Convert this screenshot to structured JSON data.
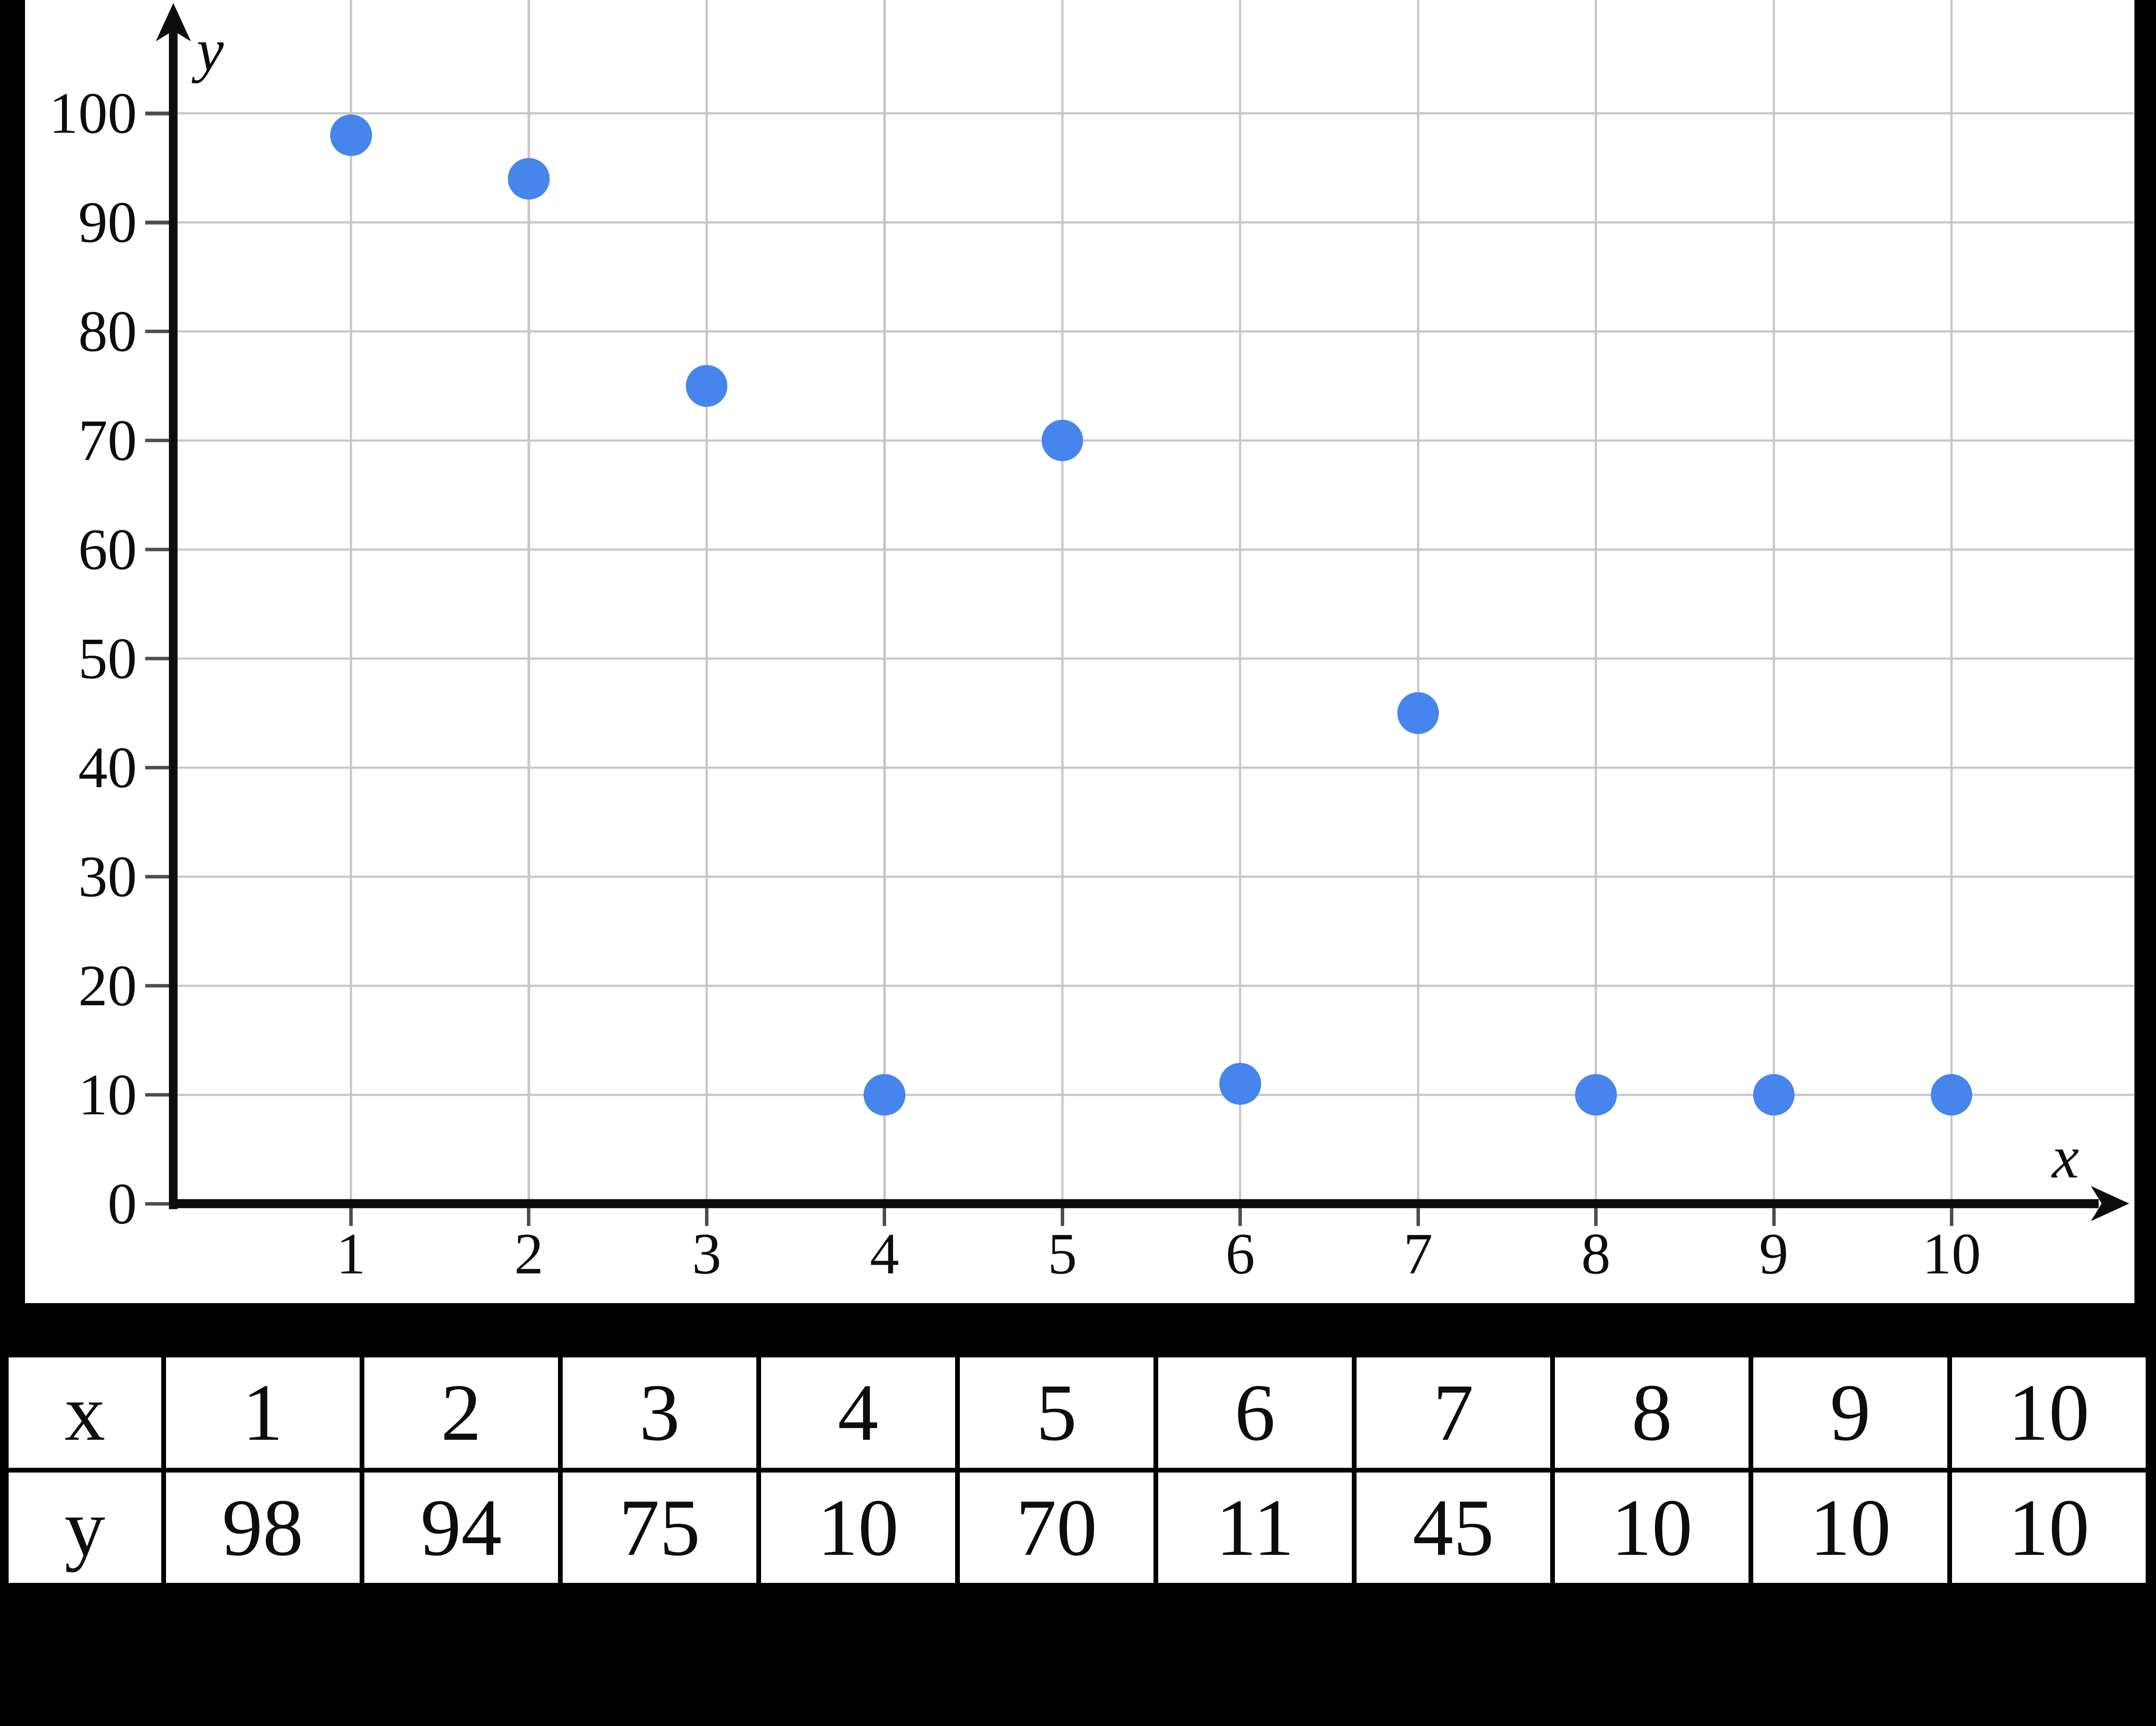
{
  "figure": {
    "description": "Scatter plot of y versus x with a values table below"
  },
  "chart_data": {
    "type": "scatter",
    "x": [
      1,
      2,
      3,
      4,
      5,
      6,
      7,
      8,
      9,
      10
    ],
    "y": [
      98,
      94,
      75,
      10,
      70,
      11,
      45,
      10,
      10,
      10
    ],
    "title": "",
    "xlabel": "x",
    "ylabel": "y",
    "xlim": [
      0,
      11.1
    ],
    "ylim": [
      0,
      110.6
    ],
    "x_ticks": [
      1,
      2,
      3,
      4,
      5,
      6,
      7,
      8,
      9,
      10
    ],
    "x_tick_labels": [
      "1",
      "2",
      "3",
      "4",
      "5",
      "6",
      "7",
      "8",
      "9",
      "10"
    ],
    "y_ticks": [
      0,
      10,
      20,
      30,
      40,
      50,
      60,
      70,
      80,
      90,
      100
    ],
    "y_tick_labels": [
      "0",
      "10",
      "20",
      "30",
      "40",
      "50",
      "60",
      "70",
      "80",
      "90",
      "100"
    ],
    "grid": true,
    "legend": false,
    "marker": "circle"
  },
  "table": {
    "row_headers": [
      "x",
      "y"
    ],
    "rows": [
      [
        "1",
        "2",
        "3",
        "4",
        "5",
        "6",
        "7",
        "8",
        "9",
        "10"
      ],
      [
        "98",
        "94",
        "75",
        "10",
        "70",
        "11",
        "45",
        "10",
        "10",
        "10"
      ]
    ]
  },
  "colors": {
    "frame": "#000000",
    "panel": "#ffffff",
    "gridline": "#c6c6c6",
    "tick": "#4d4d4d",
    "axis": "#0d0d0d",
    "point": "#4585EC",
    "text": "#0d0d0d"
  }
}
